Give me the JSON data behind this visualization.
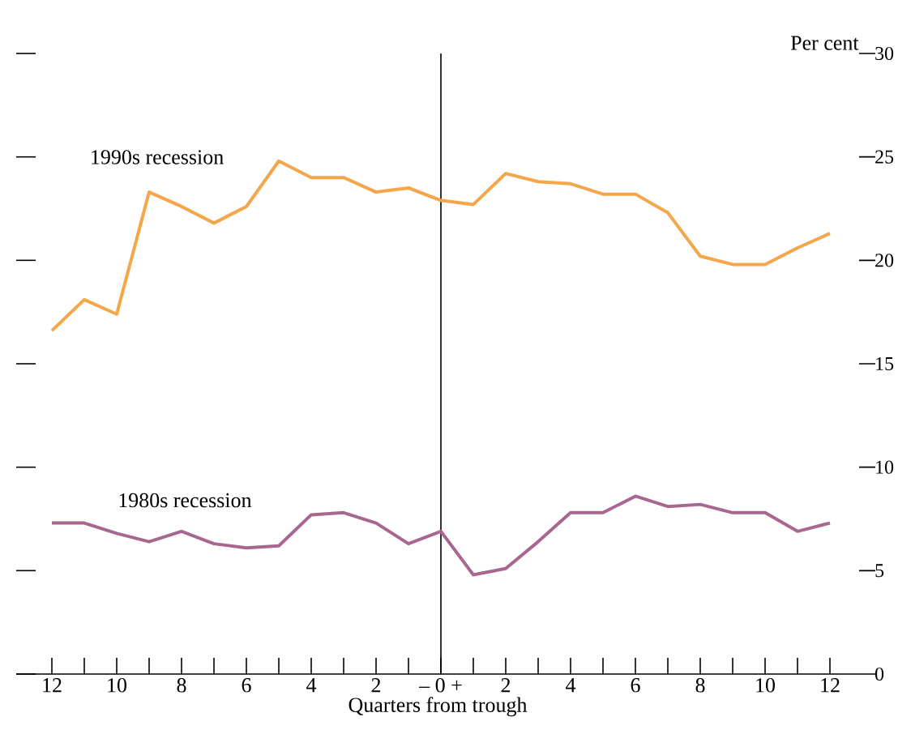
{
  "chart_data": {
    "type": "line",
    "xlabel": "Quarters from trough",
    "ylabel": "Per cent",
    "x": [
      -12,
      -11,
      -10,
      -9,
      -8,
      -7,
      -6,
      -5,
      -4,
      -3,
      -2,
      -1,
      0,
      1,
      2,
      3,
      4,
      5,
      6,
      7,
      8,
      9,
      10,
      11,
      12
    ],
    "series": [
      {
        "name": "1990s recession",
        "color": "#f5a54a",
        "values": [
          16.6,
          18.1,
          17.4,
          23.3,
          22.6,
          21.8,
          22.6,
          24.8,
          24.0,
          24.0,
          23.3,
          23.5,
          22.9,
          22.7,
          24.2,
          23.8,
          23.7,
          23.2,
          23.2,
          22.3,
          20.2,
          19.8,
          19.8,
          20.6,
          21.3
        ]
      },
      {
        "name": "1980s recession",
        "color": "#a8678f",
        "values": [
          7.3,
          7.3,
          6.8,
          6.4,
          6.9,
          6.3,
          6.1,
          6.2,
          7.7,
          7.8,
          7.3,
          6.3,
          6.9,
          4.8,
          5.1,
          6.4,
          7.8,
          7.8,
          8.6,
          8.1,
          8.2,
          7.8,
          7.8,
          6.9,
          7.3
        ]
      }
    ],
    "xlim": [
      -13.1,
      12.9
    ],
    "ylim": [
      0,
      30
    ],
    "xticks": [
      {
        "value": -12,
        "label": "12"
      },
      {
        "value": -11,
        "label": null
      },
      {
        "value": -10,
        "label": "10"
      },
      {
        "value": -9,
        "label": null
      },
      {
        "value": -8,
        "label": "8"
      },
      {
        "value": -7,
        "label": null
      },
      {
        "value": -6,
        "label": "6"
      },
      {
        "value": -5,
        "label": null
      },
      {
        "value": -4,
        "label": "4"
      },
      {
        "value": -3,
        "label": null
      },
      {
        "value": -2,
        "label": "2"
      },
      {
        "value": -1,
        "label": null
      },
      {
        "value": 0,
        "label": "– 0 +"
      },
      {
        "value": 1,
        "label": null
      },
      {
        "value": 2,
        "label": "2"
      },
      {
        "value": 3,
        "label": null
      },
      {
        "value": 4,
        "label": "4"
      },
      {
        "value": 5,
        "label": null
      },
      {
        "value": 6,
        "label": "6"
      },
      {
        "value": 7,
        "label": null
      },
      {
        "value": 8,
        "label": "8"
      },
      {
        "value": 9,
        "label": null
      },
      {
        "value": 10,
        "label": "10"
      },
      {
        "value": 11,
        "label": null
      },
      {
        "value": 12,
        "label": "12"
      }
    ],
    "yticks": [
      0,
      5,
      10,
      15,
      20,
      25,
      30
    ],
    "ref_lines": [
      {
        "axis": "x",
        "value": 0,
        "color": "#000000"
      }
    ],
    "grid": false,
    "marker": "none",
    "line_style": "solid"
  }
}
